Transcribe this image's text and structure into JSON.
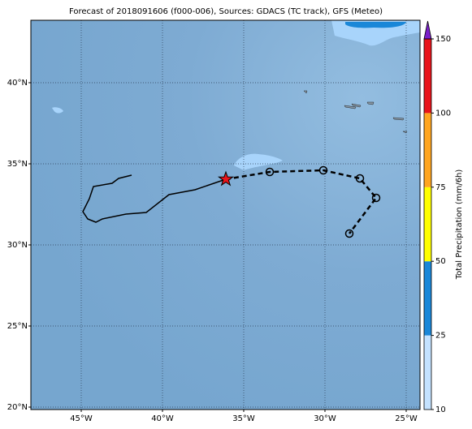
{
  "chart_data": {
    "type": "map",
    "title": "Forecast of 2018091606 (f000-006), Sources: GDACS (TC track), GFS (Meteo)",
    "xlim": [
      -48.1,
      -24.15
    ],
    "ylim": [
      19.85,
      43.85
    ],
    "xticks": [
      {
        "value": -45,
        "label": "45°W"
      },
      {
        "value": -40,
        "label": "40°W"
      },
      {
        "value": -35,
        "label": "35°W"
      },
      {
        "value": -30,
        "label": "30°W"
      },
      {
        "value": -25,
        "label": "25°W"
      }
    ],
    "yticks": [
      {
        "value": 20,
        "label": "20°N"
      },
      {
        "value": 25,
        "label": "25°N"
      },
      {
        "value": 30,
        "label": "30°N"
      },
      {
        "value": 35,
        "label": "35°N"
      },
      {
        "value": 40,
        "label": "40°N"
      }
    ],
    "grid": true,
    "past_track": {
      "color": "#000000",
      "lon": [
        -41.9,
        -42.7,
        -43.1,
        -44.25,
        -44.5,
        -44.9,
        -44.6,
        -44.1,
        -43.7,
        -42.25,
        -41.0,
        -39.6,
        -38.0,
        -36.1
      ],
      "lat": [
        34.3,
        34.1,
        33.8,
        33.6,
        32.85,
        32.05,
        31.6,
        31.4,
        31.6,
        31.9,
        32.0,
        33.1,
        33.4,
        34.05
      ]
    },
    "forecast_track": {
      "color": "#000000",
      "lon": [
        -36.1,
        -33.4,
        -30.1,
        -27.85,
        -26.85,
        -28.5
      ],
      "lat": [
        34.05,
        34.5,
        34.6,
        34.1,
        32.9,
        30.7
      ]
    },
    "current_position": {
      "color": "#e8141b",
      "lon": -36.1,
      "lat": 34.05
    },
    "colorbar": {
      "label": "Total Precipitation (mm/6h)",
      "ticks": [
        10,
        25,
        50,
        75,
        100,
        150
      ],
      "colors": [
        "#c4e2ff",
        "#1a87d8",
        "#ffff00",
        "#ffa520",
        "#e8141b"
      ],
      "extend_color": "#7b1fc9"
    }
  }
}
